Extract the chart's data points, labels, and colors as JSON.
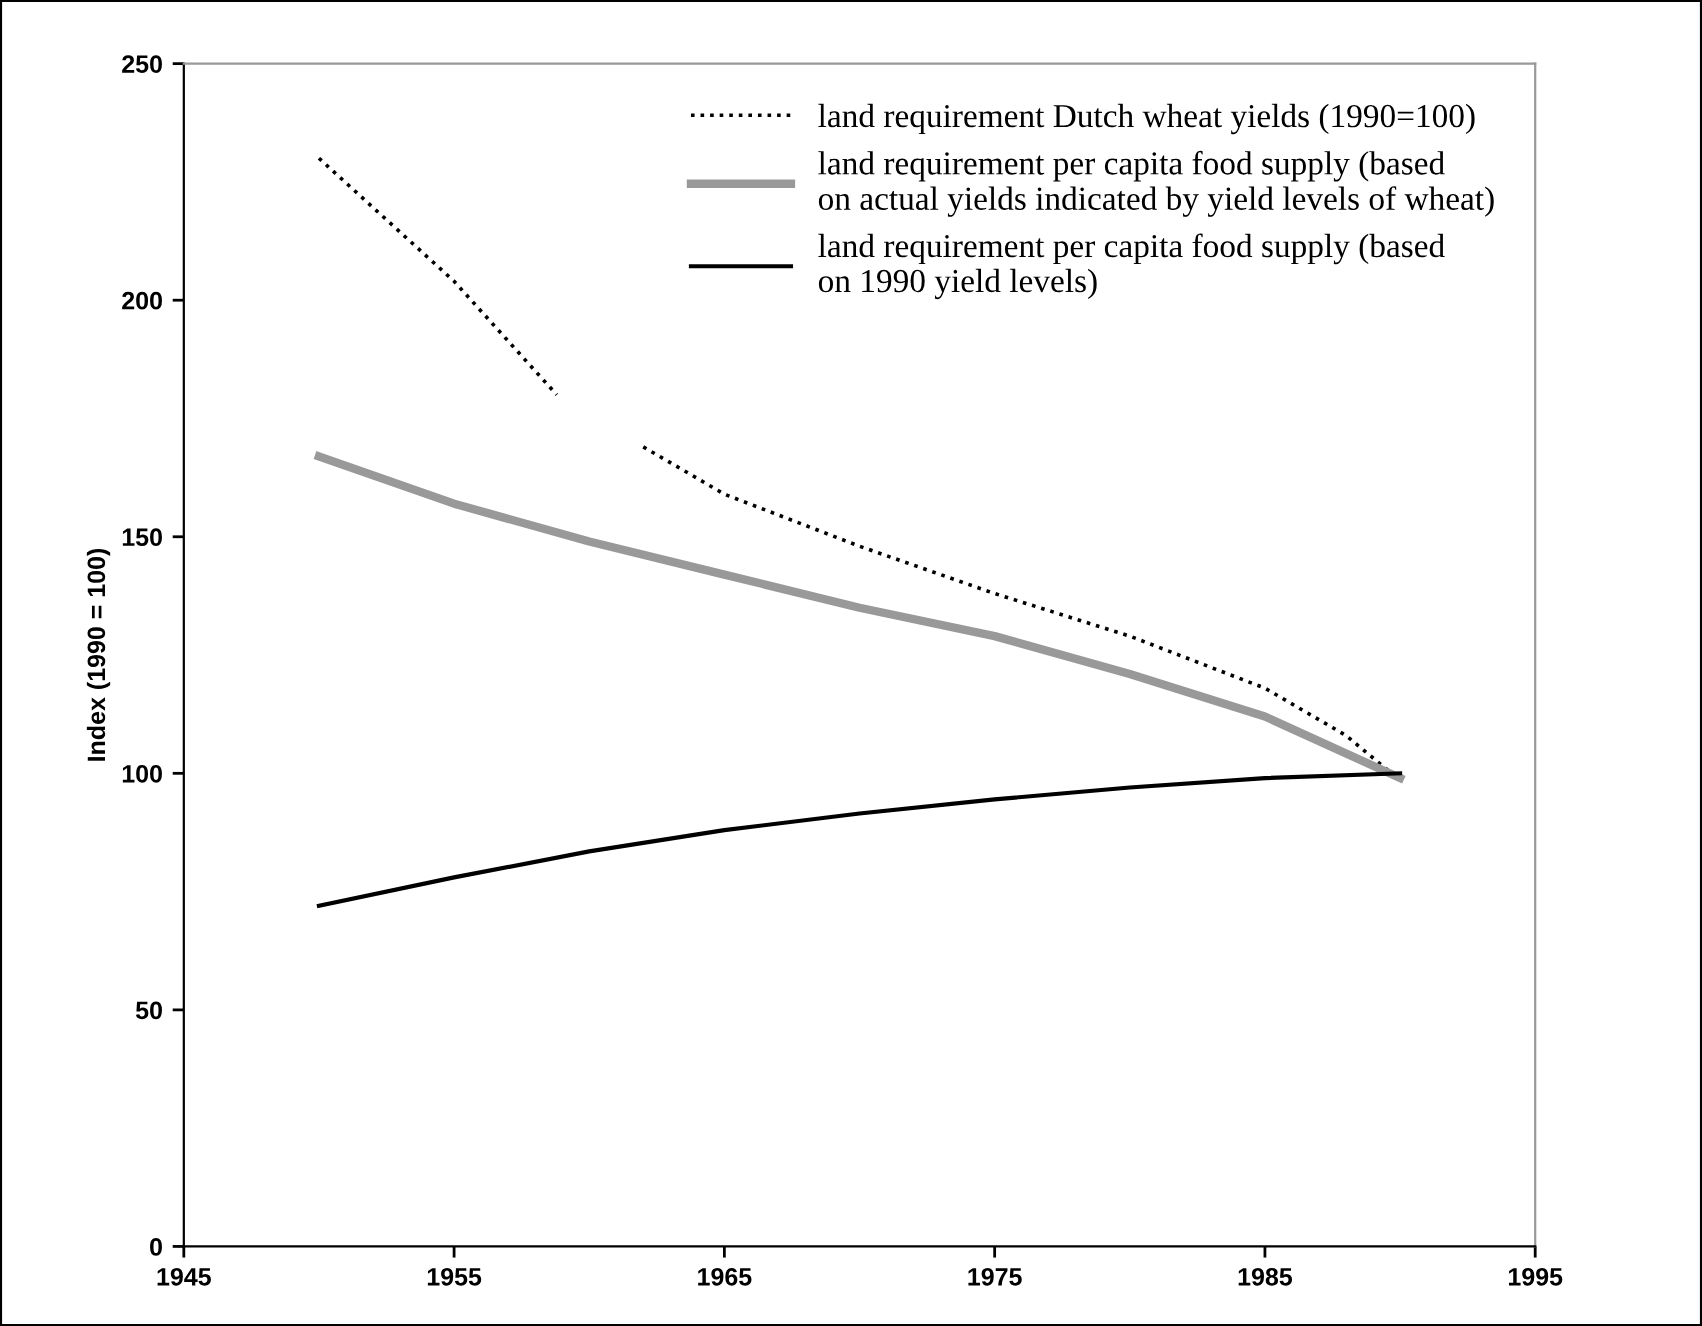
{
  "chart_data": {
    "type": "line",
    "ylabel": "Index (1990 = 100)",
    "xlim": [
      1945,
      1995
    ],
    "xticks": [
      1945,
      1955,
      1965,
      1975,
      1985,
      1995
    ],
    "ylim": [
      0,
      250
    ],
    "yticks": [
      0,
      50,
      100,
      150,
      200,
      250
    ],
    "grid": false,
    "legend": "top right",
    "marker": "none",
    "series": [
      {
        "name": "land requirement Dutch wheat yields (1990=100)",
        "color": "#000000",
        "line_style": "dotted",
        "x": [
          1950,
          1955,
          1958.8,
          1960,
          1962,
          1965,
          1970,
          1975,
          1980,
          1985,
          1988,
          1990
        ],
        "values": [
          230,
          204,
          180,
          null,
          169,
          159,
          148,
          138,
          129,
          118,
          108,
          98.5
        ]
      },
      {
        "name": "land requirement per capita food supply (based\non actual yields indicated by yield levels of wheat)",
        "color": "#999999",
        "line_style": "solid",
        "x": [
          1950,
          1955,
          1960,
          1965,
          1970,
          1975,
          1980,
          1985,
          1990
        ],
        "values": [
          167,
          157,
          149,
          142,
          135,
          129,
          121,
          112,
          99
        ]
      },
      {
        "name": "land requirement per capita food supply (based\non 1990 yield levels)",
        "color": "#000000",
        "line_style": "solid",
        "x": [
          1950,
          1955,
          1960,
          1965,
          1970,
          1975,
          1980,
          1985,
          1990
        ],
        "values": [
          72,
          78,
          83.5,
          88,
          91.5,
          94.5,
          97,
          99,
          100
        ]
      }
    ]
  }
}
